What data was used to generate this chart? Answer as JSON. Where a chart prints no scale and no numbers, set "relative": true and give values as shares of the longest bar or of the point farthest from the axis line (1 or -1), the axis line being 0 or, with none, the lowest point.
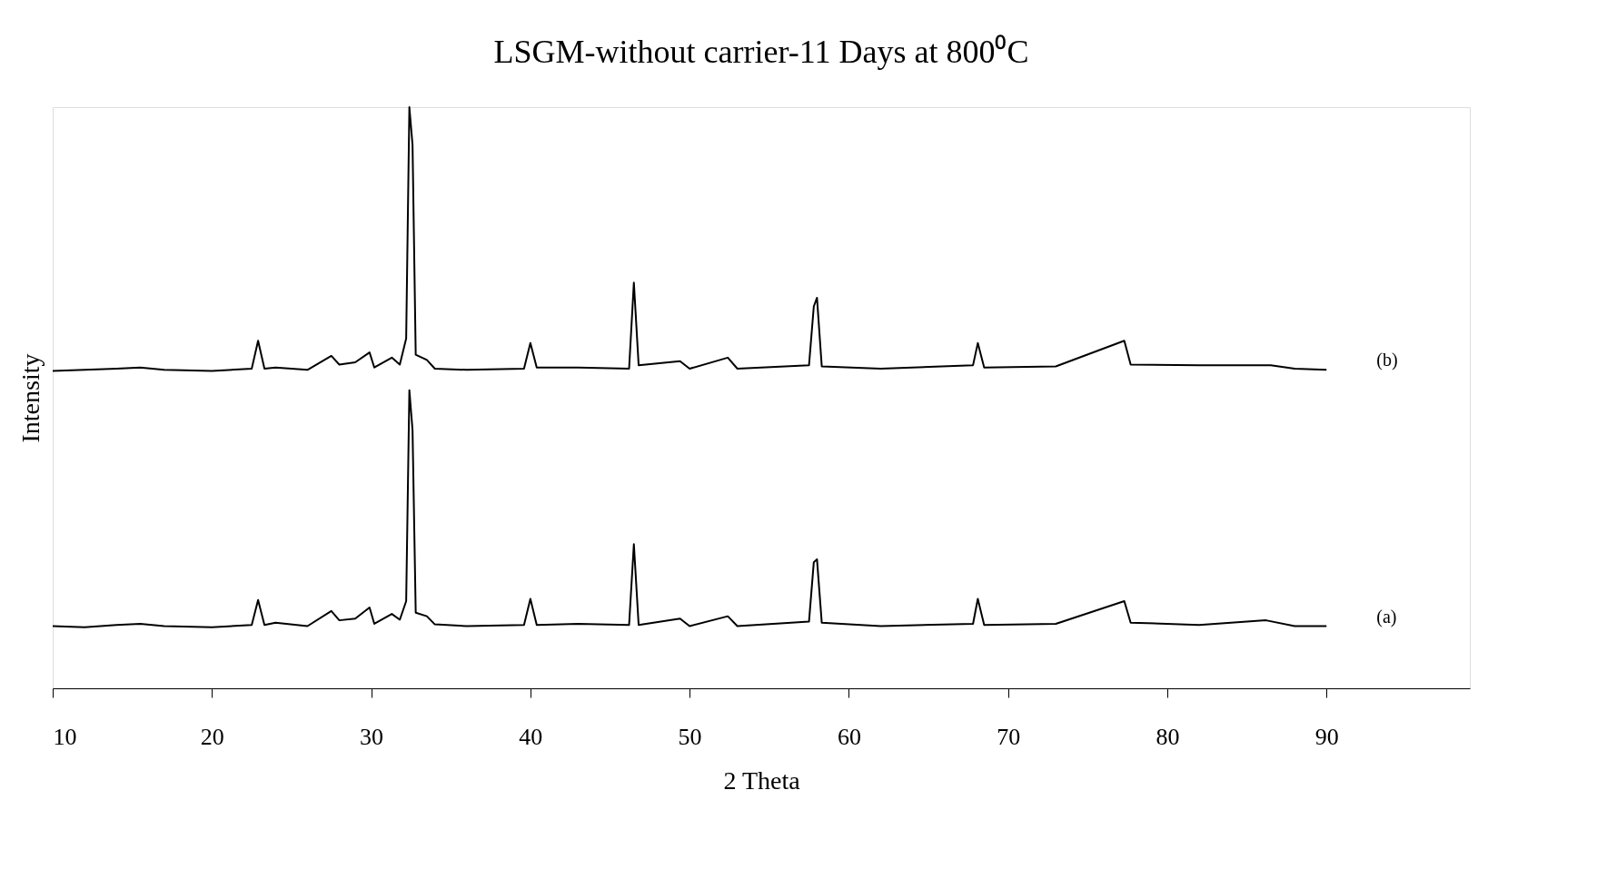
{
  "chart_data": {
    "type": "line",
    "title": "LSGM-without carrier-11 Days at 800⁰C",
    "xlabel": "2 Theta",
    "ylabel": "Intensity",
    "relative": true,
    "grid": false,
    "marker": "none",
    "line_style": "solid",
    "tick_labels": "x",
    "xlim": [
      10,
      99
    ],
    "xticks": [
      10,
      20,
      30,
      40,
      50,
      60,
      70,
      80,
      90
    ],
    "series": [
      {
        "name": "(a)",
        "color": "#000000",
        "x": [
          10,
          12,
          14,
          15.5,
          17,
          20,
          22.5,
          22.9,
          23.3,
          24,
          26,
          27.5,
          28,
          29,
          29.9,
          30.2,
          31.3,
          31.8,
          32.2,
          32.4,
          32.6,
          32.8,
          33.5,
          34,
          36,
          39.6,
          40,
          40.4,
          43,
          46.2,
          46.5,
          46.8,
          49.4,
          50,
          52.4,
          53,
          57.5,
          57.8,
          58,
          58.3,
          62,
          67.8,
          68.1,
          68.5,
          73,
          77.3,
          77.7,
          82,
          86.2,
          88,
          90
        ],
        "values": [
          0.107,
          0.105,
          0.109,
          0.111,
          0.107,
          0.105,
          0.109,
          0.152,
          0.109,
          0.113,
          0.107,
          0.133,
          0.117,
          0.12,
          0.139,
          0.111,
          0.128,
          0.118,
          0.15,
          0.513,
          0.444,
          0.13,
          0.124,
          0.11,
          0.107,
          0.109,
          0.154,
          0.109,
          0.111,
          0.109,
          0.248,
          0.109,
          0.12,
          0.107,
          0.124,
          0.107,
          0.115,
          0.217,
          0.222,
          0.113,
          0.107,
          0.111,
          0.154,
          0.109,
          0.111,
          0.15,
          0.113,
          0.109,
          0.117,
          0.107,
          0.107
        ]
      },
      {
        "name": "(b)",
        "color": "#000000",
        "x": [
          10,
          12,
          14,
          15.5,
          17,
          20,
          22.5,
          22.9,
          23.3,
          24,
          26,
          27.5,
          28,
          29,
          29.9,
          30.2,
          31.3,
          31.8,
          32.2,
          32.4,
          32.6,
          32.8,
          33.5,
          34,
          36,
          39.6,
          40,
          40.4,
          43,
          46.2,
          46.5,
          46.8,
          49.4,
          50,
          52.4,
          53,
          57.5,
          57.8,
          58,
          58.3,
          62,
          67.8,
          68.1,
          68.5,
          73,
          77.3,
          77.7,
          82,
          86.5,
          88,
          90
        ],
        "values": [
          0.546,
          0.548,
          0.55,
          0.552,
          0.548,
          0.546,
          0.55,
          0.598,
          0.55,
          0.552,
          0.548,
          0.572,
          0.557,
          0.561,
          0.578,
          0.552,
          0.569,
          0.557,
          0.602,
          1,
          0.935,
          0.574,
          0.565,
          0.55,
          0.548,
          0.55,
          0.594,
          0.552,
          0.552,
          0.55,
          0.698,
          0.556,
          0.563,
          0.55,
          0.569,
          0.55,
          0.556,
          0.657,
          0.672,
          0.554,
          0.55,
          0.556,
          0.594,
          0.552,
          0.554,
          0.598,
          0.557,
          0.556,
          0.556,
          0.55,
          0.548
        ]
      }
    ]
  }
}
